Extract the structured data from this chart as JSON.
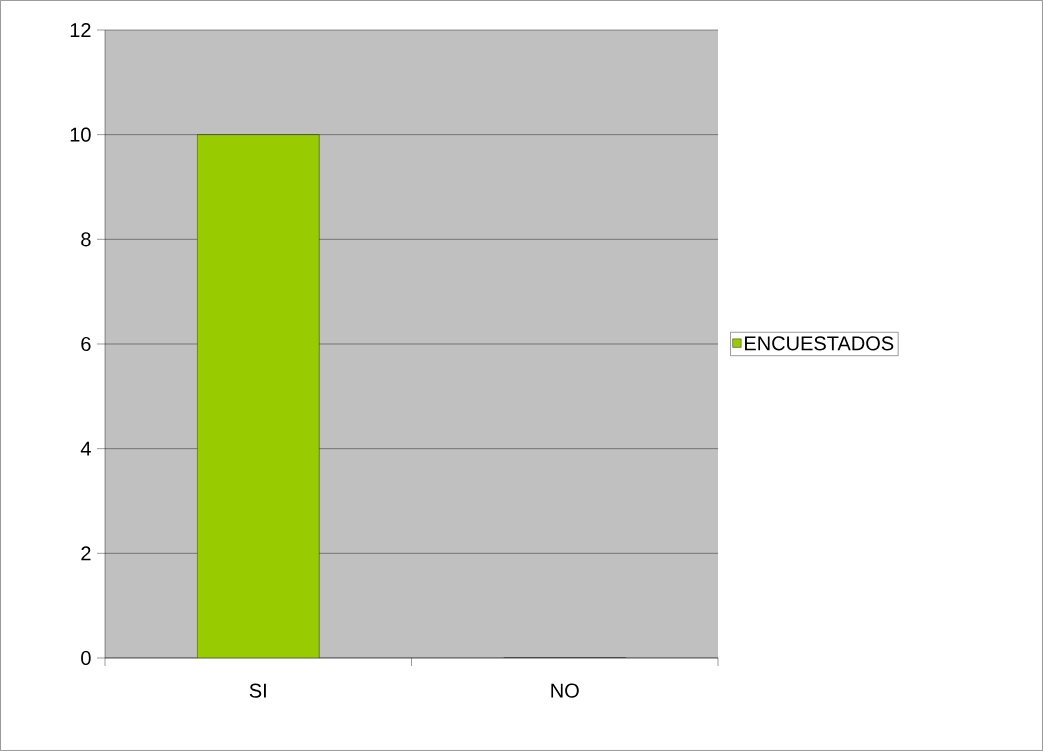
{
  "chart_data": {
    "type": "bar",
    "categories": [
      "SI",
      "NO"
    ],
    "series": [
      {
        "name": "ENCUESTADOS",
        "color": "#99cc00",
        "values": [
          10,
          0
        ]
      }
    ],
    "ylim": [
      0,
      12
    ],
    "yticks": [
      0,
      2,
      4,
      6,
      8,
      10,
      12
    ],
    "grid": "y",
    "legend": "right"
  }
}
